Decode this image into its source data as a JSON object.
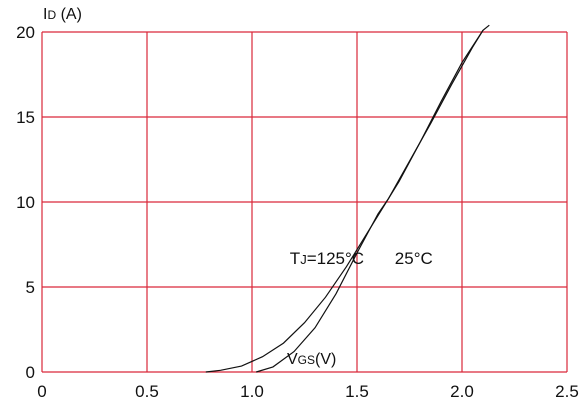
{
  "chart_data": {
    "type": "line",
    "ylabel": {
      "main": "I",
      "sub": "D",
      "unit": " (A)"
    },
    "xlabel": {
      "main": "V",
      "sub": "GS",
      "unit": "(V)"
    },
    "xlim": [
      0,
      2.5
    ],
    "ylim": [
      0,
      20
    ],
    "x_ticks": [
      "0",
      "0.5",
      "1.0",
      "1.5",
      "2.0",
      "2.5"
    ],
    "y_ticks": [
      "0",
      "5",
      "10",
      "15",
      "20"
    ],
    "x_tick_values": [
      0,
      0.5,
      1.0,
      1.5,
      2.0,
      2.5
    ],
    "y_tick_values": [
      0,
      5,
      10,
      15,
      20
    ],
    "grid": true,
    "colors": {
      "grid": "#d9283a",
      "curve": "#111111"
    },
    "series": [
      {
        "x": [
          0.78,
          0.85,
          0.95,
          1.05,
          1.15,
          1.25,
          1.35,
          1.45,
          1.55,
          1.65,
          1.75,
          1.85,
          1.95,
          2.05,
          2.1
        ],
        "y": [
          0,
          0.1,
          0.35,
          0.9,
          1.7,
          2.9,
          4.4,
          6.2,
          8.2,
          10.2,
          12.4,
          14.6,
          16.9,
          19.1,
          20.1
        ]
      },
      {
        "x": [
          1.02,
          1.1,
          1.2,
          1.3,
          1.4,
          1.5,
          1.6,
          1.65,
          1.7,
          1.8,
          1.9,
          2.0,
          2.1,
          2.13
        ],
        "y": [
          0,
          0.3,
          1.2,
          2.6,
          4.6,
          7.0,
          9.3,
          10.2,
          11.2,
          13.5,
          15.9,
          18.2,
          20.1,
          20.4
        ]
      }
    ],
    "annotations": [
      {
        "main": "T",
        "sub": "J",
        "rest": "=125°C",
        "x": 1.18,
        "y": 6.35
      },
      {
        "text": "25°C",
        "x": 1.68,
        "y": 6.35
      }
    ]
  }
}
